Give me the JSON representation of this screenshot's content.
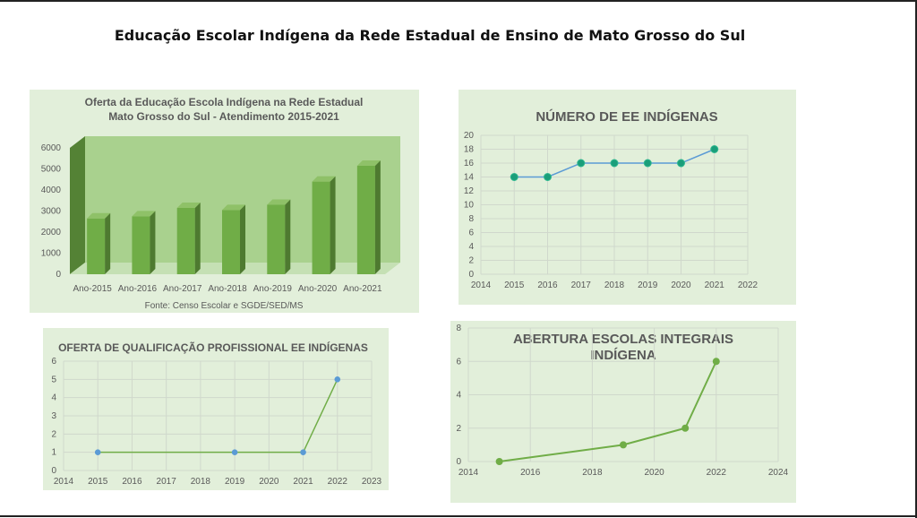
{
  "page": {
    "title": "Educação Escolar Indígena da Rede Estadual de Ensino de Mato Grosso do Sul"
  },
  "colors": {
    "panel_bg": "#e2efda",
    "bar_green": "#70ad47",
    "line_blue": "#5b9bd5",
    "marker_teal": "#1a9e7a",
    "line_green": "#70ad47",
    "point_blue": "#5b9bd5"
  },
  "chart_data": [
    {
      "type": "bar",
      "title_line1": "Oferta da Educação Escola Indígena na Rede Estadual",
      "title_line2": "Mato Grosso do Sul - Atendimento 2015-2021",
      "categories": [
        "Ano-2015",
        "Ano-2016",
        "Ano-2017",
        "Ano-2018",
        "Ano-2019",
        "Ano-2020",
        "Ano-2021"
      ],
      "values": [
        2650,
        2750,
        3150,
        3050,
        3300,
        4400,
        5150
      ],
      "ylim": [
        0,
        6000
      ],
      "yticks": [
        "0",
        "1000",
        "2000",
        "3000",
        "4000",
        "5000",
        "6000"
      ],
      "source": "Fonte: Censo Escolar e SGDE/SED/MS",
      "style": "3d"
    },
    {
      "type": "line",
      "title": "NÚMERO DE EE INDÍGENAS",
      "x": [
        2015,
        2016,
        2017,
        2018,
        2019,
        2020,
        2021
      ],
      "y": [
        14,
        14,
        16,
        16,
        16,
        16,
        18
      ],
      "xlim": [
        2014,
        2022
      ],
      "ylim": [
        0,
        20
      ],
      "xticks": [
        "2014",
        "2015",
        "2016",
        "2017",
        "2018",
        "2019",
        "2020",
        "2021",
        "2022"
      ],
      "yticks": [
        "0",
        "2",
        "4",
        "6",
        "8",
        "10",
        "12",
        "14",
        "16",
        "18",
        "20"
      ],
      "grid": true
    },
    {
      "type": "line",
      "title": "OFERTA DE QUALIFICAÇÃO PROFISSIONAL EE INDÍGENAS",
      "x": [
        2015,
        2019,
        2021,
        2022
      ],
      "y": [
        1,
        1,
        1,
        5
      ],
      "xlim": [
        2014,
        2023
      ],
      "ylim": [
        0,
        6
      ],
      "xticks": [
        "2014",
        "2015",
        "2016",
        "2017",
        "2018",
        "2019",
        "2020",
        "2021",
        "2022",
        "2023"
      ],
      "yticks": [
        "0",
        "1",
        "2",
        "3",
        "4",
        "5",
        "6"
      ],
      "grid": true
    },
    {
      "type": "line",
      "title_line1": "ABERTURA ESCOLAS INTEGRAIS",
      "title_line2": "INDÍGENA",
      "x": [
        2015,
        2019,
        2021,
        2022
      ],
      "y": [
        0,
        1,
        2,
        6
      ],
      "xlim": [
        2014,
        2024
      ],
      "ylim": [
        0,
        8
      ],
      "xticks": [
        "2014",
        "2016",
        "2018",
        "2020",
        "2022",
        "2024"
      ],
      "yticks": [
        "0",
        "2",
        "4",
        "6",
        "8"
      ],
      "grid": true
    }
  ]
}
